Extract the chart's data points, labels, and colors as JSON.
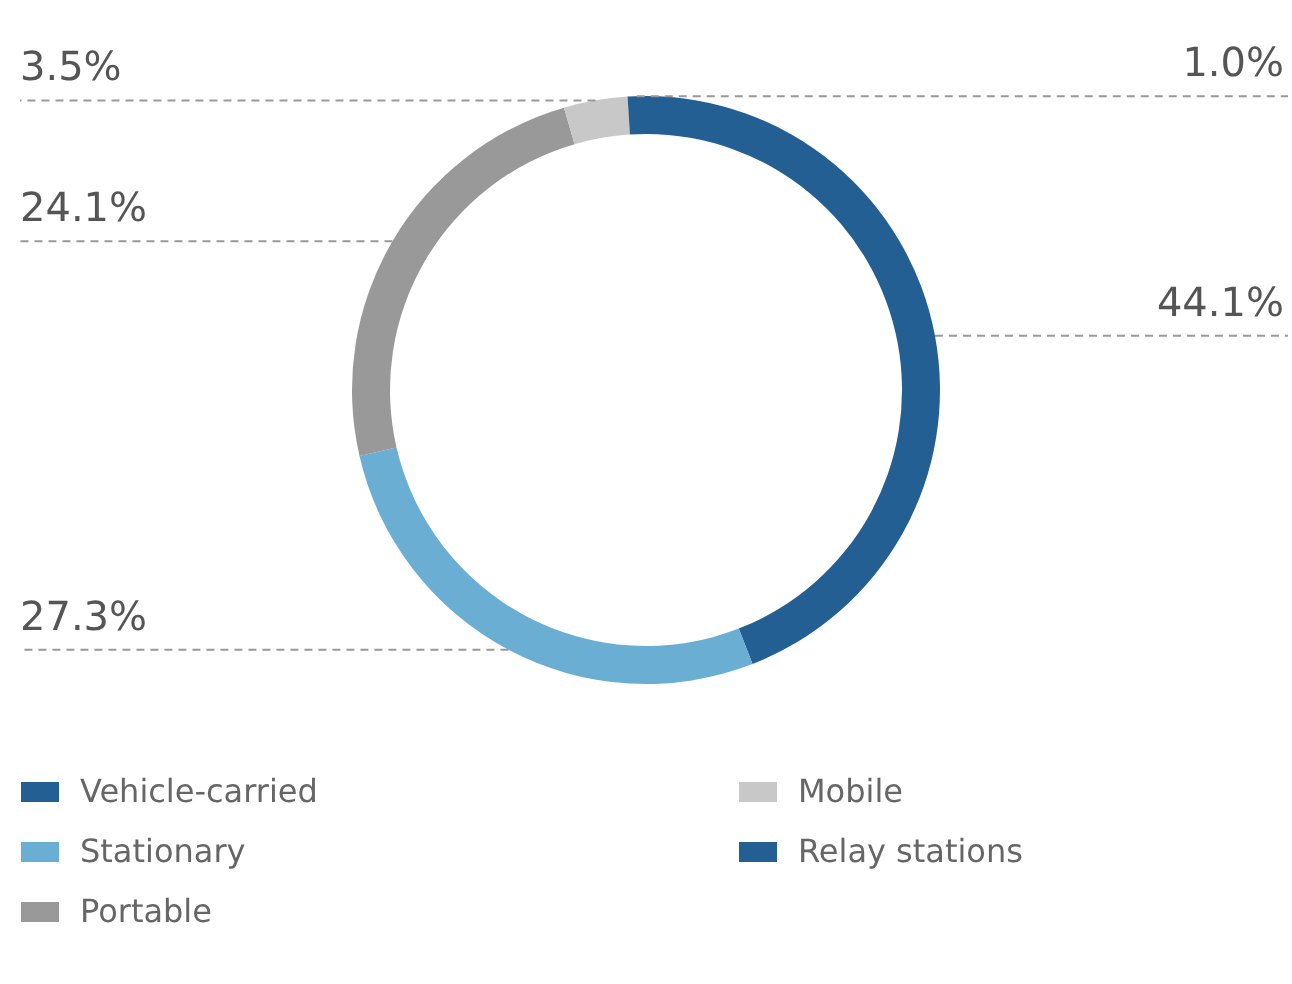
{
  "chart_data": {
    "type": "donut",
    "categories": [
      "Vehicle-carried",
      "Stationary",
      "Portable",
      "Mobile",
      "Relay stations"
    ],
    "values": [
      44.1,
      27.3,
      24.1,
      3.5,
      1.0
    ],
    "colors": [
      "#245f93",
      "#6aaed4",
      "#999999",
      "#c8c8c8",
      "#245f93"
    ],
    "value_labels": [
      "44.1%",
      "27.3%",
      "24.1%",
      "3.5%",
      "1.0%"
    ],
    "legend": "bottom"
  }
}
